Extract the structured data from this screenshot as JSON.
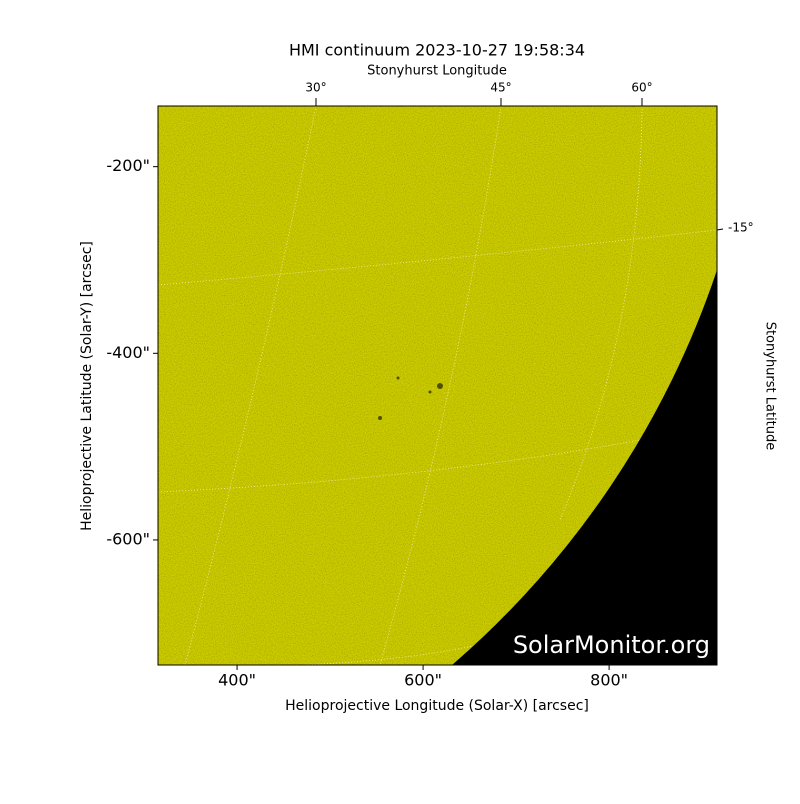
{
  "chart_data": {
    "type": "image",
    "title": "HMI continuum 2023-10-27 19:58:34",
    "xlabel": "Helioprojective Longitude (Solar-X) [arcsec]",
    "ylabel": "Helioprojective Latitude (Solar-Y) [arcsec]",
    "xlim": [
      315,
      916
    ],
    "ylim": [
      -734,
      -135
    ],
    "xticks": [
      {
        "value": 400,
        "label": "400\""
      },
      {
        "value": 600,
        "label": "600\""
      },
      {
        "value": 800,
        "label": "800\""
      }
    ],
    "yticks": [
      {
        "value": -200,
        "label": "-200\""
      },
      {
        "value": -400,
        "label": "-400\""
      },
      {
        "value": -600,
        "label": "-600\""
      }
    ],
    "top_axis": {
      "label": "Stonyhurst Longitude",
      "ticks": [
        "30°",
        "45°",
        "60°"
      ]
    },
    "right_axis": {
      "label": "Stonyhurst Latitude",
      "ticks": [
        "-15°"
      ]
    },
    "watermark": "SolarMonitor.org",
    "color": "#cccc00"
  }
}
